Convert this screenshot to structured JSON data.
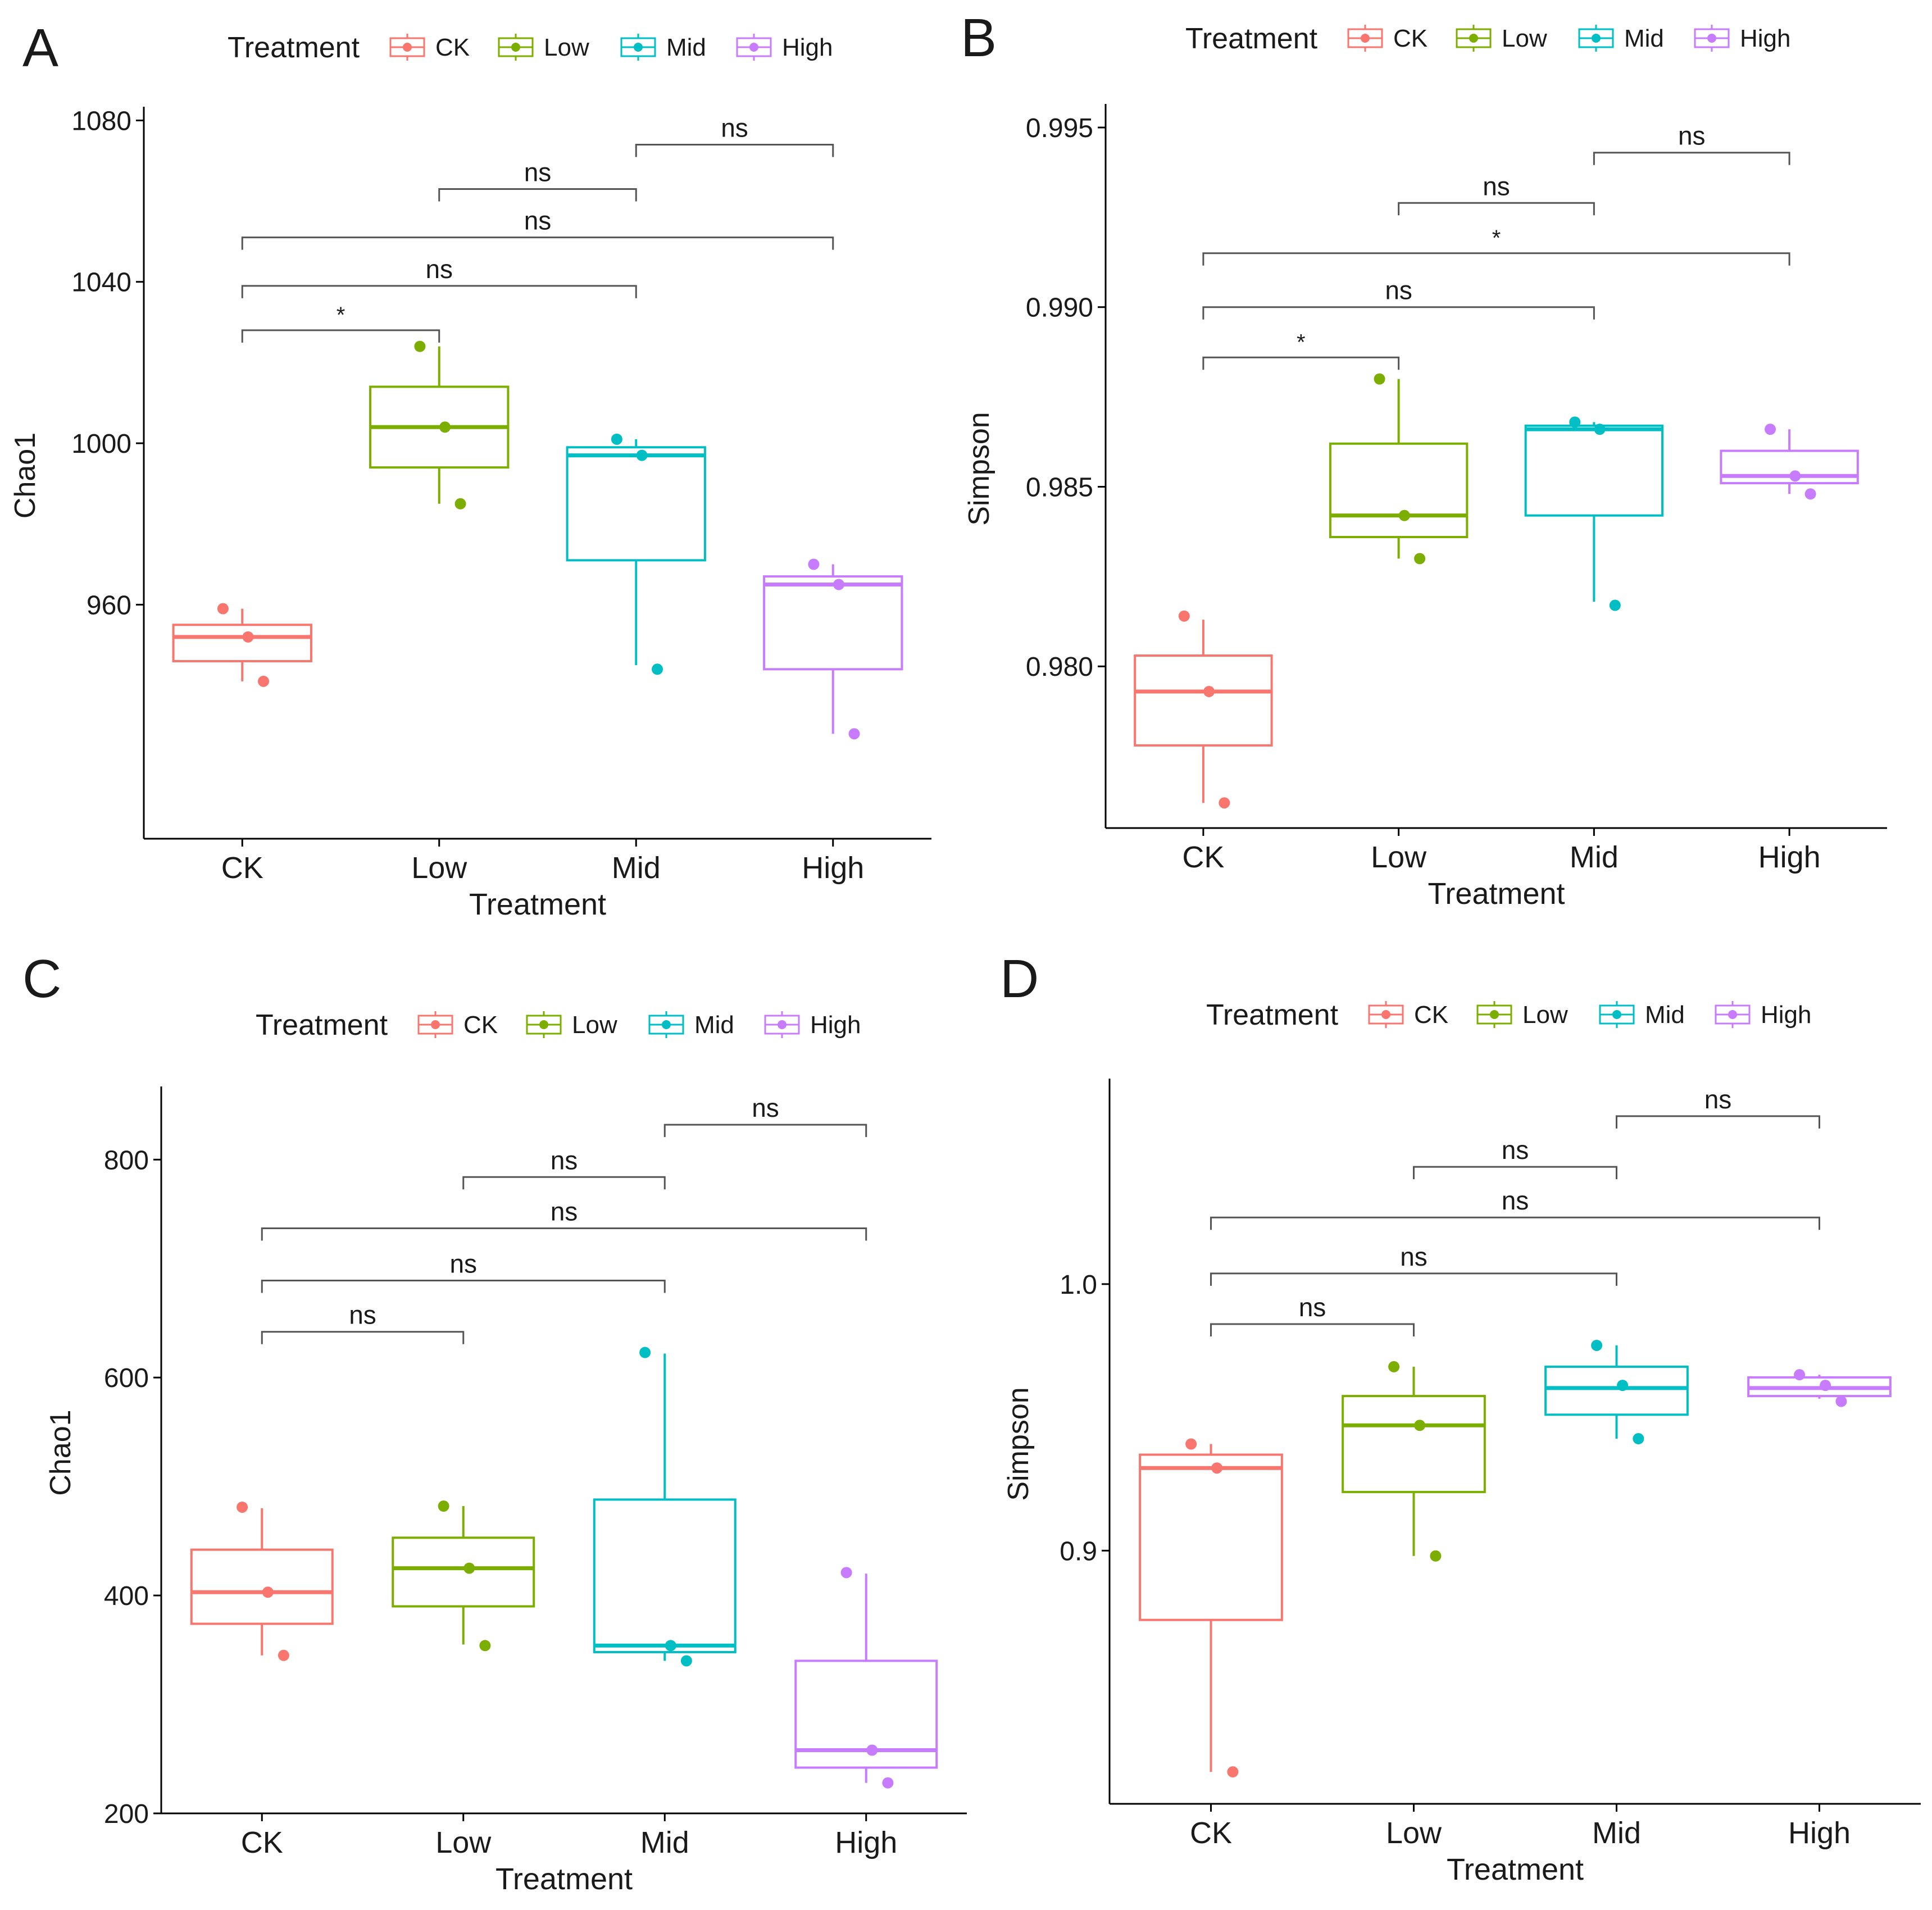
{
  "legend_title": "Treatment",
  "groups": [
    "CK",
    "Low",
    "Mid",
    "High"
  ],
  "colors": {
    "CK": "#F8766D",
    "Low": "#7CAE00",
    "Mid": "#00BFC4",
    "High": "#C77CFF"
  },
  "chart_data": [
    {
      "panel": "A",
      "type": "box",
      "xlabel": "Treatment",
      "ylabel": "Chao1",
      "ylim": [
        902,
        1082
      ],
      "yticks": [
        960,
        1000,
        1040,
        1080
      ],
      "boxes": [
        {
          "group": "CK",
          "q1": 946,
          "median": 952,
          "q3": 955,
          "whisker_low": 941,
          "whisker_high": 959,
          "points": [
            959,
            952,
            941
          ]
        },
        {
          "group": "Low",
          "q1": 994,
          "median": 1004,
          "q3": 1014,
          "whisker_low": 985,
          "whisker_high": 1024,
          "points": [
            1024,
            1004,
            985
          ]
        },
        {
          "group": "Mid",
          "q1": 971,
          "median": 997,
          "q3": 999,
          "whisker_low": 945,
          "whisker_high": 1001,
          "points": [
            1001,
            997,
            944
          ]
        },
        {
          "group": "High",
          "q1": 944,
          "median": 965,
          "q3": 967,
          "whisker_low": 928,
          "whisker_high": 970,
          "points": [
            970,
            965,
            928
          ]
        }
      ],
      "comparisons": [
        {
          "from": "CK",
          "to": "Low",
          "label": "*",
          "y": 1028
        },
        {
          "from": "CK",
          "to": "Mid",
          "label": "ns",
          "y": 1039
        },
        {
          "from": "CK",
          "to": "High",
          "label": "ns",
          "y": 1051
        },
        {
          "from": "Low",
          "to": "Mid",
          "label": "ns",
          "y": 1063
        },
        {
          "from": "Mid",
          "to": "High",
          "label": "ns",
          "y": 1074
        }
      ]
    },
    {
      "panel": "B",
      "type": "box",
      "xlabel": "Treatment",
      "ylabel": "Simpson",
      "ylim": [
        0.9755,
        0.9955
      ],
      "yticks": [
        0.98,
        0.985,
        0.99,
        0.995
      ],
      "boxes": [
        {
          "group": "CK",
          "q1": 0.9778,
          "median": 0.9793,
          "q3": 0.9803,
          "whisker_low": 0.9762,
          "whisker_high": 0.9813,
          "points": [
            0.9814,
            0.9793,
            0.9762
          ]
        },
        {
          "group": "Low",
          "q1": 0.9836,
          "median": 0.9842,
          "q3": 0.9862,
          "whisker_low": 0.983,
          "whisker_high": 0.988,
          "points": [
            0.988,
            0.9842,
            0.983
          ]
        },
        {
          "group": "Mid",
          "q1": 0.9842,
          "median": 0.9866,
          "q3": 0.9867,
          "whisker_low": 0.9818,
          "whisker_high": 0.9868,
          "points": [
            0.9868,
            0.9866,
            0.9817
          ]
        },
        {
          "group": "High",
          "q1": 0.9851,
          "median": 0.9853,
          "q3": 0.986,
          "whisker_low": 0.9848,
          "whisker_high": 0.9866,
          "points": [
            0.9866,
            0.9853,
            0.9848
          ]
        }
      ],
      "comparisons": [
        {
          "from": "CK",
          "to": "Low",
          "label": "*",
          "y": 0.9886
        },
        {
          "from": "CK",
          "to": "Mid",
          "label": "ns",
          "y": 0.99
        },
        {
          "from": "CK",
          "to": "High",
          "label": "*",
          "y": 0.9915
        },
        {
          "from": "Low",
          "to": "Mid",
          "label": "ns",
          "y": 0.9929
        },
        {
          "from": "Mid",
          "to": "High",
          "label": "ns",
          "y": 0.9943
        }
      ]
    },
    {
      "panel": "C",
      "type": "box",
      "xlabel": "Treatment",
      "ylabel": "Chao1",
      "ylim": [
        200,
        862
      ],
      "yticks": [
        200,
        400,
        600,
        800
      ],
      "boxes": [
        {
          "group": "CK",
          "q1": 374,
          "median": 403,
          "q3": 442,
          "whisker_low": 345,
          "whisker_high": 480,
          "points": [
            481,
            403,
            345
          ]
        },
        {
          "group": "Low",
          "q1": 390,
          "median": 425,
          "q3": 453,
          "whisker_low": 355,
          "whisker_high": 482,
          "points": [
            482,
            425,
            354
          ]
        },
        {
          "group": "Mid",
          "q1": 348,
          "median": 354,
          "q3": 488,
          "whisker_low": 340,
          "whisker_high": 622,
          "points": [
            623,
            354,
            340
          ]
        },
        {
          "group": "High",
          "q1": 242,
          "median": 258,
          "q3": 340,
          "whisker_low": 228,
          "whisker_high": 420,
          "points": [
            421,
            258,
            228
          ]
        }
      ],
      "comparisons": [
        {
          "from": "CK",
          "to": "Low",
          "label": "ns",
          "y": 642
        },
        {
          "from": "CK",
          "to": "Mid",
          "label": "ns",
          "y": 689
        },
        {
          "from": "CK",
          "to": "High",
          "label": "ns",
          "y": 737
        },
        {
          "from": "Low",
          "to": "Mid",
          "label": "ns",
          "y": 784
        },
        {
          "from": "Mid",
          "to": "High",
          "label": "ns",
          "y": 832
        }
      ]
    },
    {
      "panel": "D",
      "type": "box",
      "xlabel": "Treatment",
      "ylabel": "Simpson",
      "ylim": [
        0.805,
        1.075
      ],
      "yticks": [
        0.9,
        1.0
      ],
      "boxes": [
        {
          "group": "CK",
          "q1": 0.874,
          "median": 0.931,
          "q3": 0.936,
          "whisker_low": 0.817,
          "whisker_high": 0.94,
          "points": [
            0.94,
            0.931,
            0.817
          ]
        },
        {
          "group": "Low",
          "q1": 0.922,
          "median": 0.947,
          "q3": 0.958,
          "whisker_low": 0.898,
          "whisker_high": 0.969,
          "points": [
            0.969,
            0.947,
            0.898
          ]
        },
        {
          "group": "Mid",
          "q1": 0.951,
          "median": 0.961,
          "q3": 0.969,
          "whisker_low": 0.942,
          "whisker_high": 0.977,
          "points": [
            0.977,
            0.962,
            0.942
          ]
        },
        {
          "group": "High",
          "q1": 0.958,
          "median": 0.961,
          "q3": 0.965,
          "whisker_low": 0.957,
          "whisker_high": 0.966,
          "points": [
            0.966,
            0.962,
            0.956
          ]
        }
      ],
      "comparisons": [
        {
          "from": "CK",
          "to": "Low",
          "label": "ns",
          "y": 0.985
        },
        {
          "from": "CK",
          "to": "Mid",
          "label": "ns",
          "y": 1.004
        },
        {
          "from": "CK",
          "to": "High",
          "label": "ns",
          "y": 1.025
        },
        {
          "from": "Low",
          "to": "Mid",
          "label": "ns",
          "y": 1.044
        },
        {
          "from": "Mid",
          "to": "High",
          "label": "ns",
          "y": 1.063
        }
      ]
    }
  ]
}
